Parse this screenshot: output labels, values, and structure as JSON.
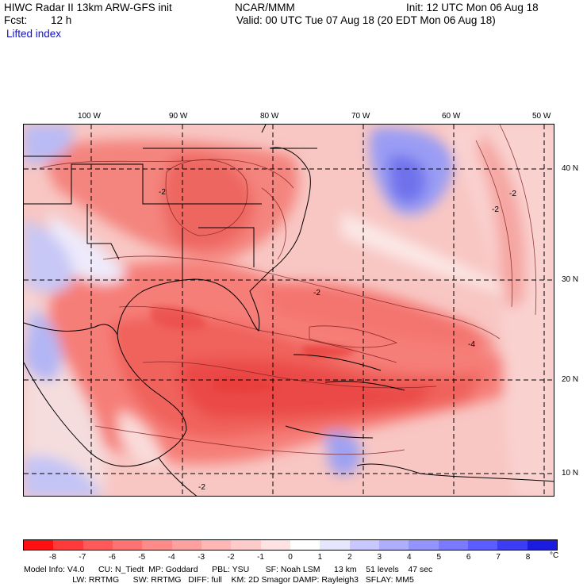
{
  "header": {
    "model": "HIWC Radar II 13km ARW-GFS init",
    "center": "NCAR/MMM",
    "init": "Init: 12 UTC Mon 06 Aug 18",
    "fcst_label": "Fcst:",
    "fcst_value": "12 h",
    "valid": "Valid: 00 UTC Tue 07 Aug 18 (20 EDT Mon 06 Aug 18)",
    "field": "Lifted index"
  },
  "map": {
    "lon_labels": [
      "100 W",
      "90 W",
      "80 W",
      "70 W",
      "60 W",
      "50 W"
    ],
    "lat_labels": [
      "40 N",
      "30 N",
      "20 N",
      "10 N"
    ],
    "contour_labels": [
      "-2",
      "-4"
    ]
  },
  "colorbar": {
    "colors": [
      "#ff1010",
      "#ff3a3a",
      "#ff5a5a",
      "#ff7272",
      "#ff8a8a",
      "#ffa0a0",
      "#ffb6b6",
      "#ffcaca",
      "#ffe2e2",
      "#ffffff",
      "#e6e6ff",
      "#c8c8ff",
      "#aeaeff",
      "#9494ff",
      "#7a7aff",
      "#5c5cff",
      "#3c3cf2",
      "#1c1ce0"
    ],
    "labels": [
      "-8",
      "-7",
      "-6",
      "-5",
      "-4",
      "-3",
      "-2",
      "-1",
      "0",
      "1",
      "2",
      "3",
      "4",
      "5",
      "6",
      "7",
      "8"
    ],
    "unit": "°C"
  },
  "footer": {
    "line1": "Model Info: V4.0      CU: N_Tiedt  MP: Goddard      PBL: YSU       SF: Noah LSM      13 km    51 levels    47 sec",
    "line2": "                     LW: RRTMG      SW: RRTMG   DIFF: full    KM: 2D Smagor DAMP: Rayleigh3   SFLAY: MM5"
  }
}
